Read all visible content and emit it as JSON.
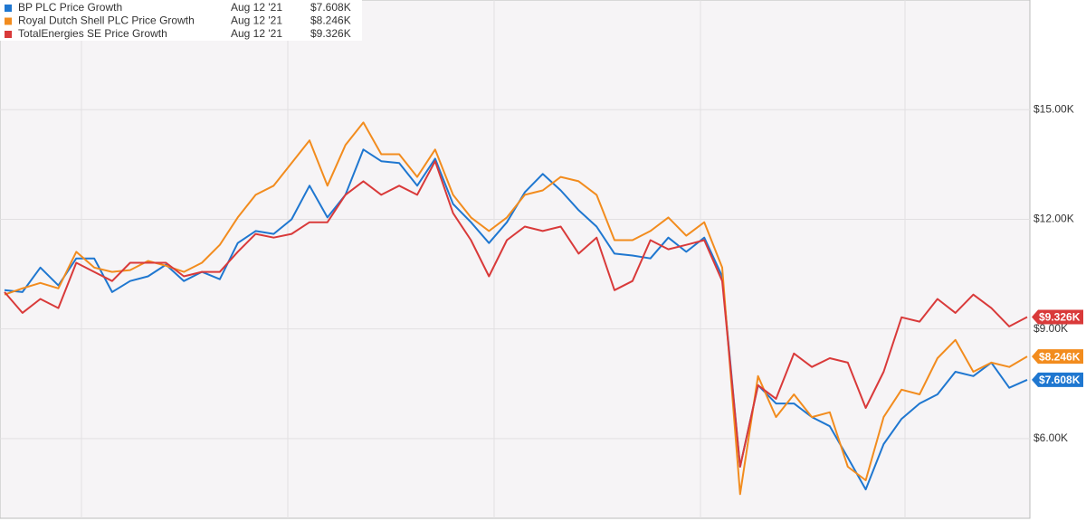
{
  "chart_data": {
    "type": "line",
    "legend_date": "Aug 12 '21",
    "ylim": [
      3.82,
      18.0
    ],
    "yticks": [
      {
        "value": 6,
        "label": "$6.00K"
      },
      {
        "value": 9,
        "label": "$9.00K"
      },
      {
        "value": 12,
        "label": "$12.00K"
      },
      {
        "value": 15,
        "label": "$15.00K"
      }
    ],
    "grid": true,
    "legend_position": "top-left",
    "series": [
      {
        "name": "BP PLC Price Growth",
        "color": "#1f77d0",
        "values": [
          10.06,
          10.01,
          10.68,
          10.19,
          10.93,
          10.93,
          10.01,
          10.31,
          10.44,
          10.76,
          10.31,
          10.56,
          10.36,
          11.35,
          11.68,
          11.6,
          12.0,
          12.92,
          12.05,
          12.67,
          13.91,
          13.59,
          13.54,
          12.92,
          13.66,
          12.42,
          11.92,
          11.35,
          11.92,
          12.74,
          13.24,
          12.79,
          12.25,
          11.8,
          11.06,
          11.01,
          10.93,
          11.5,
          11.11,
          11.5,
          10.44,
          5.23,
          7.46,
          6.96,
          6.96,
          6.59,
          6.34,
          5.48,
          4.61,
          5.85,
          6.54,
          6.96,
          7.21,
          7.83,
          7.71,
          8.08,
          7.39,
          7.608
        ],
        "value_labels": [
          null,
          null,
          null,
          null,
          null,
          null,
          null,
          null,
          null,
          null,
          null,
          null,
          null,
          null,
          null,
          null,
          null,
          null,
          null,
          null,
          null,
          null,
          null,
          null,
          null,
          null,
          null,
          null,
          null,
          null,
          null,
          null,
          null,
          null,
          null,
          null,
          null,
          null,
          null,
          null,
          null,
          null,
          null,
          null,
          null,
          null,
          null,
          null,
          null,
          null,
          null,
          null,
          null,
          null,
          null,
          null,
          null,
          "$7.608K"
        ]
      },
      {
        "name": "Royal Dutch Shell PLC Price Growth",
        "color": "#f28c1e",
        "values": [
          9.94,
          10.11,
          10.26,
          10.11,
          11.11,
          10.68,
          10.56,
          10.61,
          10.86,
          10.73,
          10.56,
          10.81,
          11.3,
          12.05,
          12.67,
          12.92,
          13.54,
          14.16,
          12.92,
          14.03,
          14.65,
          13.78,
          13.78,
          13.16,
          13.91,
          12.67,
          12.05,
          11.68,
          12.05,
          12.67,
          12.79,
          13.16,
          13.04,
          12.67,
          11.43,
          11.43,
          11.68,
          12.05,
          11.55,
          11.92,
          10.68,
          4.48,
          7.71,
          6.59,
          7.21,
          6.59,
          6.72,
          5.23,
          4.86,
          6.59,
          7.34,
          7.21,
          8.2,
          8.7,
          7.83,
          8.08,
          7.96,
          8.246
        ],
        "value_labels": [
          null,
          null,
          null,
          null,
          null,
          null,
          null,
          null,
          null,
          null,
          null,
          null,
          null,
          null,
          null,
          null,
          null,
          null,
          null,
          null,
          null,
          null,
          null,
          null,
          null,
          null,
          null,
          null,
          null,
          null,
          null,
          null,
          null,
          null,
          null,
          null,
          null,
          null,
          null,
          null,
          null,
          null,
          null,
          null,
          null,
          null,
          null,
          null,
          null,
          null,
          null,
          null,
          null,
          null,
          null,
          null,
          null,
          "$8.246K"
        ]
      },
      {
        "name": "TotalEnergies SE Price Growth",
        "color": "#d93a3a",
        "values": [
          10.01,
          9.44,
          9.82,
          9.57,
          10.81,
          10.56,
          10.31,
          10.81,
          10.81,
          10.81,
          10.44,
          10.56,
          10.56,
          11.11,
          11.6,
          11.5,
          11.6,
          11.92,
          11.92,
          12.67,
          13.04,
          12.67,
          12.92,
          12.67,
          13.59,
          12.17,
          11.43,
          10.44,
          11.43,
          11.8,
          11.68,
          11.8,
          11.06,
          11.5,
          10.06,
          10.31,
          11.43,
          11.18,
          11.3,
          11.43,
          10.31,
          5.23,
          7.46,
          7.09,
          8.33,
          7.96,
          8.2,
          8.08,
          6.84,
          7.83,
          9.32,
          9.2,
          9.82,
          9.44,
          9.94,
          9.57,
          9.07,
          9.326
        ],
        "value_labels": [
          null,
          null,
          null,
          null,
          null,
          null,
          null,
          null,
          null,
          null,
          null,
          null,
          null,
          null,
          null,
          null,
          null,
          null,
          null,
          null,
          null,
          null,
          null,
          null,
          null,
          null,
          null,
          null,
          null,
          null,
          null,
          null,
          null,
          null,
          null,
          null,
          null,
          null,
          null,
          null,
          null,
          null,
          null,
          null,
          null,
          null,
          null,
          null,
          null,
          null,
          null,
          null,
          null,
          null,
          null,
          null,
          null,
          "$9.326K"
        ]
      }
    ]
  }
}
